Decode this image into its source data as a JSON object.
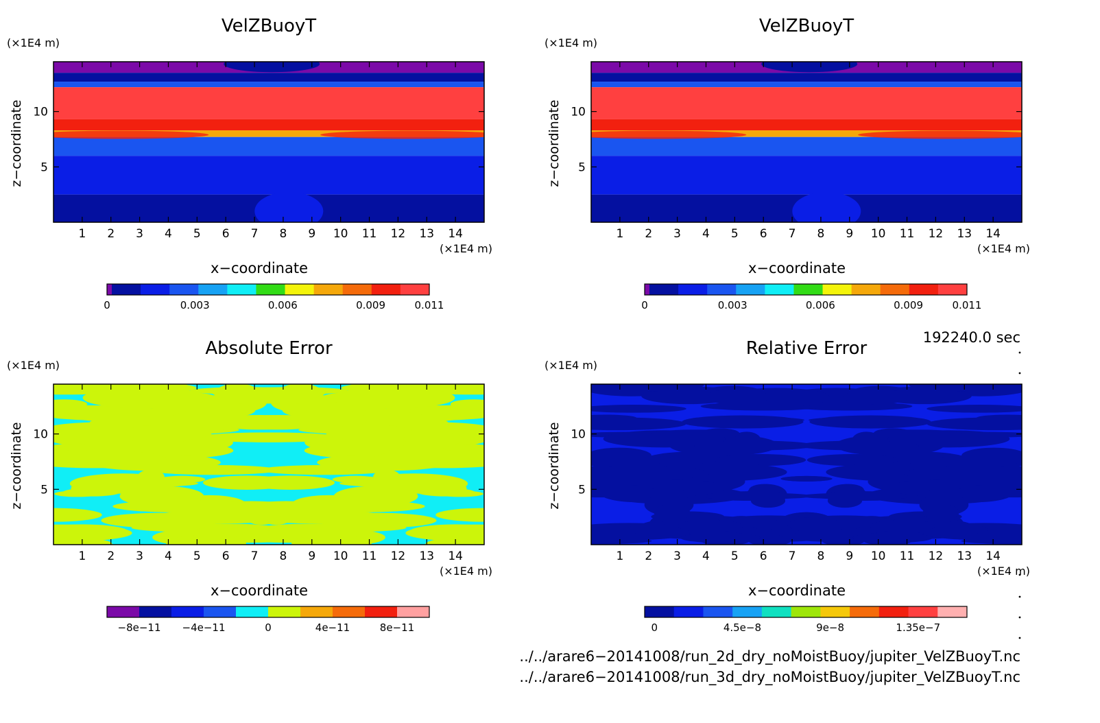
{
  "chart_data": [
    {
      "type": "heatmap",
      "title": "VelZBuoyT",
      "xlabel": "x−coordinate",
      "ylabel": "z−coordinate",
      "x_unit": "(×1E4 m)",
      "y_unit": "(×1E4 m)",
      "xlim": [
        0,
        15
      ],
      "ylim": [
        0,
        14.5
      ],
      "xticks": [
        "1",
        "2",
        "3",
        "4",
        "5",
        "6",
        "7",
        "8",
        "9",
        "10",
        "11",
        "12",
        "13",
        "14"
      ],
      "yticks": [
        "5",
        "10"
      ],
      "colorbar": {
        "colors": [
          "#7b0aa8",
          "#0410a0",
          "#0a1ee6",
          "#1a55f0",
          "#17a2f4",
          "#10eef6",
          "#32dc16",
          "#f4f40a",
          "#f5a80a",
          "#f56b0a",
          "#f2200f",
          "#ff4040"
        ],
        "ticks": [
          "0",
          "0.003",
          "0.006",
          "0.009",
          "0.011"
        ],
        "tick_values": [
          0,
          0.003,
          0.006,
          0.009,
          0.011
        ],
        "range": [
          0,
          0.011
        ]
      },
      "bands": [
        {
          "z": [
            13.5,
            14.5
          ],
          "color": "#7b0aa8"
        },
        {
          "z": [
            12.7,
            13.5
          ],
          "color": "#0410a0"
        },
        {
          "z": [
            12.2,
            12.7
          ],
          "color": "#1a55f0"
        },
        {
          "z": [
            9.3,
            12.2
          ],
          "color": "#ff4040"
        },
        {
          "z": [
            8.3,
            9.3
          ],
          "color": "#f2200f"
        },
        {
          "z": [
            7.7,
            8.3
          ],
          "color": "#f5a80a"
        },
        {
          "z": [
            6.0,
            7.7
          ],
          "color": "#1a55f0"
        },
        {
          "z": [
            2.5,
            6.0
          ],
          "color": "#0a1ee6"
        },
        {
          "z": [
            0,
            2.5
          ],
          "color": "#0410a0"
        }
      ]
    },
    {
      "type": "heatmap",
      "title": "VelZBuoyT",
      "xlabel": "x−coordinate",
      "ylabel": "z−coordinate",
      "x_unit": "(×1E4 m)",
      "y_unit": "(×1E4 m)",
      "xlim": [
        0,
        15
      ],
      "ylim": [
        0,
        14.5
      ],
      "xticks": [
        "1",
        "2",
        "3",
        "4",
        "5",
        "6",
        "7",
        "8",
        "9",
        "10",
        "11",
        "12",
        "13",
        "14"
      ],
      "yticks": [
        "5",
        "10"
      ],
      "colorbar": {
        "colors": [
          "#7b0aa8",
          "#0410a0",
          "#0a1ee6",
          "#1a55f0",
          "#17a2f4",
          "#10eef6",
          "#32dc16",
          "#f4f40a",
          "#f5a80a",
          "#f56b0a",
          "#f2200f",
          "#ff4040"
        ],
        "ticks": [
          "0",
          "0.003",
          "0.006",
          "0.009",
          "0.011"
        ],
        "tick_values": [
          0,
          0.003,
          0.006,
          0.009,
          0.011
        ],
        "range": [
          0,
          0.011
        ]
      },
      "bands": [
        {
          "z": [
            13.5,
            14.5
          ],
          "color": "#7b0aa8"
        },
        {
          "z": [
            12.7,
            13.5
          ],
          "color": "#0410a0"
        },
        {
          "z": [
            12.2,
            12.7
          ],
          "color": "#1a55f0"
        },
        {
          "z": [
            9.3,
            12.2
          ],
          "color": "#ff4040"
        },
        {
          "z": [
            8.3,
            9.3
          ],
          "color": "#f2200f"
        },
        {
          "z": [
            7.7,
            8.3
          ],
          "color": "#f5a80a"
        },
        {
          "z": [
            6.0,
            7.7
          ],
          "color": "#1a55f0"
        },
        {
          "z": [
            2.5,
            6.0
          ],
          "color": "#0a1ee6"
        },
        {
          "z": [
            0,
            2.5
          ],
          "color": "#0410a0"
        }
      ]
    },
    {
      "type": "heatmap",
      "title": "Absolute Error",
      "xlabel": "x−coordinate",
      "ylabel": "z−coordinate",
      "x_unit": "(×1E4 m)",
      "y_unit": "(×1E4 m)",
      "xlim": [
        0,
        15
      ],
      "ylim": [
        0,
        14.5
      ],
      "xticks": [
        "1",
        "2",
        "3",
        "4",
        "5",
        "6",
        "7",
        "8",
        "9",
        "10",
        "11",
        "12",
        "13",
        "14"
      ],
      "yticks": [
        "5",
        "10"
      ],
      "colorbar": {
        "colors": [
          "#7b0aa8",
          "#0410a0",
          "#0a1ee6",
          "#1a55f0",
          "#10eef6",
          "#ccf50a",
          "#f5a80a",
          "#f56b0a",
          "#f2200f",
          "#ffa0a0"
        ],
        "ticks": [
          "−8e−11",
          "−4e−11",
          "0",
          "4e−11",
          "8e−11"
        ],
        "tick_values": [
          -8e-11,
          -4e-11,
          0,
          4e-11,
          8e-11
        ],
        "range": [
          -1e-10,
          1e-10
        ]
      },
      "background": "#10eef6",
      "patch_color": "#ccf50a",
      "bands": []
    },
    {
      "type": "heatmap",
      "title": "Relative Error",
      "xlabel": "x−coordinate",
      "ylabel": "z−coordinate",
      "x_unit": "(×1E4 m)",
      "y_unit": "(×1E4 m)",
      "xlim": [
        0,
        15
      ],
      "ylim": [
        0,
        14.5
      ],
      "xticks": [
        "1",
        "2",
        "3",
        "4",
        "5",
        "6",
        "7",
        "8",
        "9",
        "10",
        "11",
        "12",
        "13",
        "14"
      ],
      "yticks": [
        "5",
        "10"
      ],
      "colorbar": {
        "colors": [
          "#0410a0",
          "#0a1ee6",
          "#1a55f0",
          "#17a2f4",
          "#10e0c0",
          "#9ee60a",
          "#f5c80a",
          "#f56b0a",
          "#f2200f",
          "#ff4040",
          "#ffb0b0"
        ],
        "ticks": [
          "0",
          "4.5e−8",
          "9e−8",
          "1.35e−7"
        ],
        "tick_values": [
          0,
          4.5e-08,
          9e-08,
          1.35e-07
        ],
        "range": [
          -5e-09,
          1.6e-07
        ]
      },
      "background": "#0a1ee6",
      "patch_color": "#0410a0",
      "bands": []
    }
  ],
  "footer": {
    "time_label": "192240.0 sec",
    "file1": "../../arare6−20141008/run_2d_dry_noMoistBuoy/jupiter_VelZBuoyT.nc",
    "file2": "../../arare6−20141008/run_3d_dry_noMoistBuoy/jupiter_VelZBuoyT.nc"
  }
}
